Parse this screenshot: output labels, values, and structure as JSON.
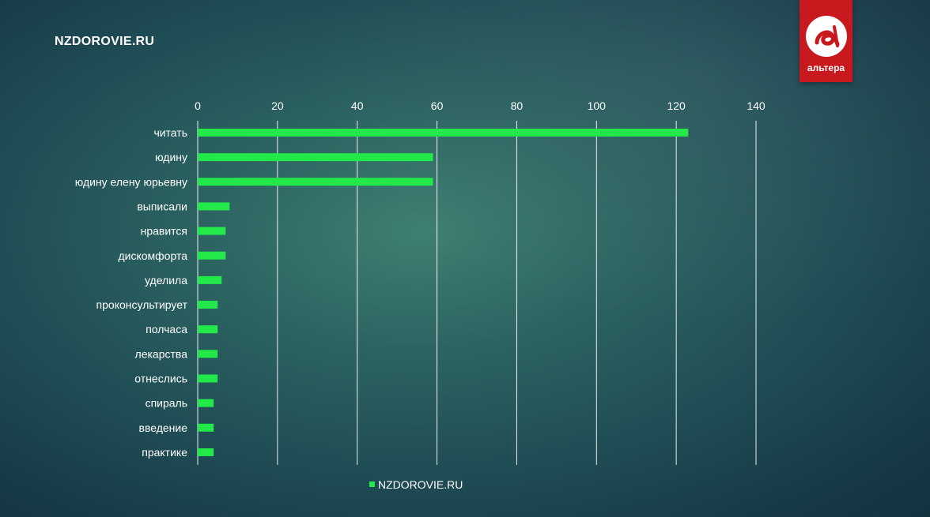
{
  "header": {
    "site_title": "NZDOROVIE.RU"
  },
  "logo": {
    "text": "альтера",
    "icon": "altera-a-logo",
    "color": "#c8191e"
  },
  "chart_data": {
    "type": "bar",
    "orientation": "horizontal",
    "title": "",
    "xlabel": "",
    "ylabel": "",
    "xlim": [
      0,
      140
    ],
    "x_ticks": [
      0,
      20,
      40,
      60,
      80,
      100,
      120,
      140
    ],
    "x_axis_position": "top",
    "grid": true,
    "legend_position": "bottom",
    "bar_color": "#22e84a",
    "categories": [
      "читать",
      "юдину",
      "юдину елену юрьевну",
      "выписали",
      "нравится",
      "дискомфорта",
      "уделила",
      "проконсультирует",
      "полчаса",
      "лекарства",
      "отнеслись",
      "спираль",
      "введение",
      "практике"
    ],
    "series": [
      {
        "name": "NZDOROVIE.RU",
        "values": [
          123,
          59,
          59,
          8,
          7,
          7,
          6,
          5,
          5,
          5,
          5,
          4,
          4,
          4
        ]
      }
    ]
  }
}
